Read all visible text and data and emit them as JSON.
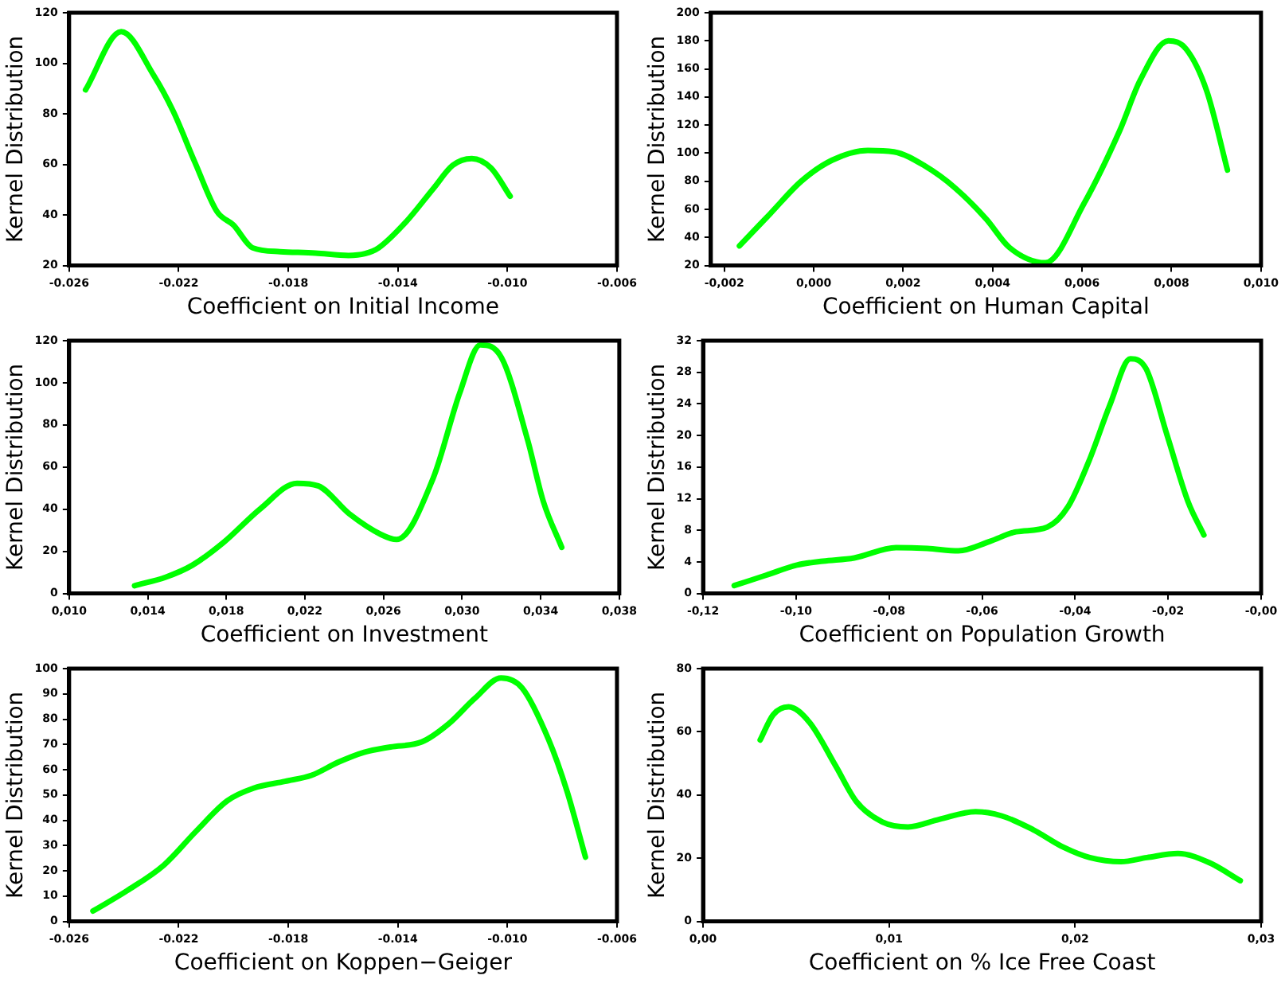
{
  "chart_data": [
    {
      "type": "line",
      "xlabel": "Coefficient on Initial Income",
      "ylabel": "Kernel Distribution",
      "grid": false,
      "legend": false,
      "marker": "none",
      "line_style": "solid",
      "x": [
        -0.0254,
        -0.0241,
        -0.0229,
        -0.0222,
        -0.0214,
        -0.0206,
        -0.02,
        -0.0193,
        -0.0183,
        -0.017,
        -0.0158,
        -0.0152,
        -0.0147,
        -0.0137,
        -0.0127,
        -0.012,
        -0.0113,
        -0.0106,
        -0.0099
      ],
      "series": [
        {
          "color": "#00ff00",
          "values": [
            89.5,
            112.5,
            95,
            81,
            60.6,
            41.3,
            36,
            27,
            25.5,
            24.9,
            24,
            24.7,
            27,
            37.3,
            50.5,
            59.6,
            62.3,
            58.6,
            47.4
          ]
        }
      ],
      "xlim": [
        -0.026,
        -0.006
      ],
      "xticks": [
        {
          "value": -0.026,
          "label": "-0.026"
        },
        {
          "value": -0.022,
          "label": "-0.022"
        },
        {
          "value": -0.018,
          "label": "-0.018"
        },
        {
          "value": -0.014,
          "label": "-0.014"
        },
        {
          "value": -0.01,
          "label": "-0.010"
        },
        {
          "value": -0.006,
          "label": "-0.006"
        }
      ],
      "ylim": [
        20,
        120
      ],
      "yticks": [
        20,
        40,
        60,
        80,
        100,
        120
      ]
    },
    {
      "type": "line",
      "xlabel": "Coefficient on Human Capital",
      "ylabel": "Kernel Distribution",
      "grid": false,
      "legend": false,
      "marker": "none",
      "line_style": "solid",
      "x": [
        -0.00166,
        -0.00097,
        -0.00028,
        0.00041,
        0.00121,
        0.00179,
        0.00248,
        0.00317,
        0.00386,
        0.00437,
        0.00518,
        0.00604,
        0.00684,
        0.0073,
        0.00793,
        0.00833,
        0.00879,
        0.00925
      ],
      "series": [
        {
          "color": "#00ff00",
          "values": [
            34,
            57,
            80,
            95,
            102,
            101,
            91,
            75,
            53,
            33,
            22,
            64,
            116,
            152,
            180,
            174,
            144,
            88
          ]
        }
      ],
      "xlim": [
        -0.0023,
        0.01
      ],
      "xticks": [
        {
          "value": -0.002,
          "label": "-0,002"
        },
        {
          "value": 0,
          "label": "0,000"
        },
        {
          "value": 0.002,
          "label": "0,002"
        },
        {
          "value": 0.004,
          "label": "0,004"
        },
        {
          "value": 0.006,
          "label": "0,006"
        },
        {
          "value": 0.008,
          "label": "0,008"
        },
        {
          "value": 0.01,
          "label": "0,010"
        }
      ],
      "ylim": [
        20,
        200
      ],
      "yticks": [
        20,
        40,
        60,
        80,
        100,
        120,
        140,
        160,
        180,
        200
      ]
    },
    {
      "type": "line",
      "xlabel": "Coefficient on Investment",
      "ylabel": "Kernel Distribution",
      "grid": false,
      "legend": false,
      "marker": "none",
      "line_style": "solid",
      "x": [
        0.01333,
        0.01493,
        0.01627,
        0.01787,
        0.01973,
        0.0216,
        0.02267,
        0.02427,
        0.02587,
        0.02667,
        0.02853,
        0.02987,
        0.03093,
        0.032,
        0.03333,
        0.03413,
        0.03507
      ],
      "series": [
        {
          "color": "#00ff00",
          "values": [
            3.7,
            7.8,
            13.4,
            24.3,
            40.2,
            52.3,
            51.1,
            37.7,
            28,
            25.6,
            54.8,
            94.9,
            118,
            112,
            73,
            43.8,
            21.9
          ]
        }
      ],
      "xlim": [
        0.01,
        0.038
      ],
      "xticks": [
        {
          "value": 0.01,
          "label": "0,010"
        },
        {
          "value": 0.014,
          "label": "0,014"
        },
        {
          "value": 0.018,
          "label": "0,018"
        },
        {
          "value": 0.022,
          "label": "0,022"
        },
        {
          "value": 0.026,
          "label": "0,026"
        },
        {
          "value": 0.03,
          "label": "0,030"
        },
        {
          "value": 0.034,
          "label": "0,034"
        },
        {
          "value": 0.038,
          "label": "0,038"
        }
      ],
      "ylim": [
        0,
        120
      ],
      "yticks": [
        0,
        20,
        40,
        60,
        80,
        100,
        120
      ]
    },
    {
      "type": "line",
      "xlabel": "Coefficient on Population Growth",
      "ylabel": "Kernel Distribution",
      "grid": false,
      "legend": false,
      "marker": "none",
      "line_style": "solid",
      "x": [
        -0.1133,
        -0.1065,
        -0.0998,
        -0.0942,
        -0.0875,
        -0.0785,
        -0.0718,
        -0.0651,
        -0.0583,
        -0.0527,
        -0.046,
        -0.0415,
        -0.037,
        -0.0325,
        -0.0281,
        -0.0247,
        -0.0202,
        -0.0157,
        -0.0123
      ],
      "series": [
        {
          "color": "#00ff00",
          "values": [
            1,
            2.3,
            3.6,
            4.1,
            4.5,
            5.8,
            5.7,
            5.4,
            6.6,
            7.8,
            8.4,
            11,
            16.8,
            23.9,
            29.7,
            28.4,
            20,
            11.6,
            7.4
          ]
        }
      ],
      "xlim": [
        -0.12,
        0
      ],
      "xticks": [
        {
          "value": -0.12,
          "label": "-0,12"
        },
        {
          "value": -0.1,
          "label": "-0,10"
        },
        {
          "value": -0.08,
          "label": "-0,08"
        },
        {
          "value": -0.06,
          "label": "-0,06"
        },
        {
          "value": -0.04,
          "label": "-0,04"
        },
        {
          "value": -0.02,
          "label": "-0,02"
        },
        {
          "value": 0,
          "label": "-0,00"
        }
      ],
      "ylim": [
        0,
        32
      ],
      "yticks": [
        0,
        4,
        8,
        12,
        16,
        20,
        24,
        28,
        32
      ]
    },
    {
      "type": "line",
      "xlabel": "Coefficient on Koppen−Geiger",
      "ylabel": "Kernel Distribution",
      "grid": false,
      "legend": false,
      "marker": "none",
      "line_style": "solid",
      "x": [
        -0.02513,
        -0.02388,
        -0.02254,
        -0.02138,
        -0.02023,
        -0.01927,
        -0.01812,
        -0.01715,
        -0.01619,
        -0.01523,
        -0.01427,
        -0.01312,
        -0.01215,
        -0.01119,
        -0.01023,
        -0.00946,
        -0.0085,
        -0.00783,
        -0.00715
      ],
      "series": [
        {
          "color": "#00ff00",
          "values": [
            4.1,
            12.2,
            22.3,
            35.5,
            47.7,
            52.7,
            55.4,
            57.8,
            62.9,
            66.9,
            69,
            71,
            78.1,
            88.2,
            96.3,
            92.3,
            72,
            51.7,
            25.4
          ]
        }
      ],
      "xlim": [
        -0.026,
        -0.006
      ],
      "xticks": [
        {
          "value": -0.026,
          "label": "-0.026"
        },
        {
          "value": -0.022,
          "label": "-0.022"
        },
        {
          "value": -0.018,
          "label": "-0.018"
        },
        {
          "value": -0.014,
          "label": "-0.014"
        },
        {
          "value": -0.01,
          "label": "-0.010"
        },
        {
          "value": -0.006,
          "label": "-0.006"
        }
      ],
      "ylim": [
        0,
        100
      ],
      "yticks": [
        0,
        10,
        20,
        30,
        40,
        50,
        60,
        70,
        80,
        90,
        100
      ]
    },
    {
      "type": "line",
      "xlabel": "Coefficient on % Ice Free Coast",
      "ylabel": "Kernel Distribution",
      "grid": false,
      "legend": false,
      "marker": "none",
      "line_style": "solid",
      "x": [
        0.00307,
        0.00377,
        0.0046,
        0.00572,
        0.00712,
        0.00823,
        0.00963,
        0.01102,
        0.0127,
        0.01465,
        0.01605,
        0.01772,
        0.0194,
        0.02079,
        0.02247,
        0.02386,
        0.02553,
        0.02721,
        0.02888
      ],
      "series": [
        {
          "color": "#00ff00",
          "values": [
            57.4,
            65.4,
            67.9,
            63,
            49.3,
            38,
            31.5,
            29.9,
            32.3,
            34.7,
            33.4,
            29.1,
            23.4,
            20.2,
            18.9,
            20.2,
            21.5,
            18.6,
            12.9
          ]
        }
      ],
      "xlim": [
        0,
        0.03
      ],
      "xticks": [
        {
          "value": 0,
          "label": "0,00"
        },
        {
          "value": 0.01,
          "label": "0,01"
        },
        {
          "value": 0.02,
          "label": "0,02"
        },
        {
          "value": 0.03,
          "label": "0,03"
        }
      ],
      "ylim": [
        0,
        80
      ],
      "yticks": [
        0,
        20,
        40,
        60,
        80
      ]
    }
  ]
}
